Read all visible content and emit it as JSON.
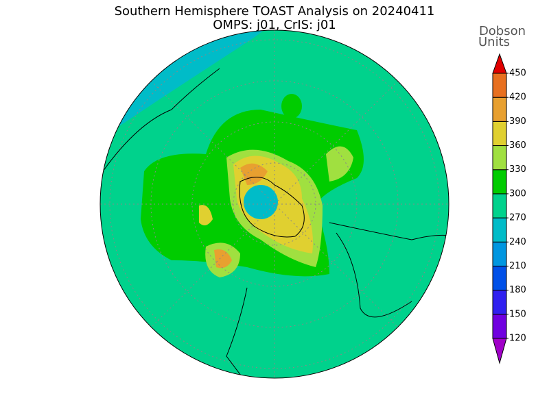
{
  "title": "Southern Hemisphere TOAST Analysis on 20240411",
  "subtitle": "OMPS: j01, CrIS: j01",
  "colorbar": {
    "label": [
      "Dobson",
      "Units"
    ],
    "ticks": [
      120,
      150,
      180,
      210,
      240,
      270,
      300,
      330,
      360,
      390,
      420,
      450
    ],
    "colors": [
      "#a000c8",
      "#7000e0",
      "#3020f0",
      "#0050e8",
      "#0096e0",
      "#00bcc8",
      "#00d28c",
      "#00cc00",
      "#a0e040",
      "#e0d030",
      "#e8a030",
      "#e87020",
      "#e00000",
      "#c8007a"
    ]
  }
}
